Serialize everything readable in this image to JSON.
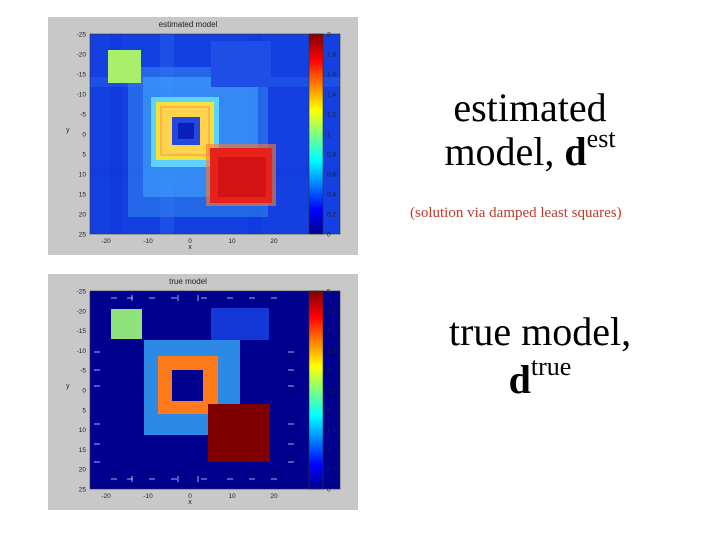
{
  "estimated_panel": {
    "plot_title": "estimated model",
    "y_ticks": [
      "-25",
      "-20",
      "-15",
      "-10",
      "-5",
      "0",
      "5",
      "10",
      "15",
      "20",
      "25"
    ],
    "x_ticks": [
      "-20",
      "-10",
      "0",
      "10",
      "20"
    ],
    "x_axis_label": "x",
    "y_axis_label": "y",
    "colorbar_ticks": [
      "2",
      "1.8",
      "1.6",
      "1.4",
      "1.2",
      "1",
      "0.8",
      "0.6",
      "0.4",
      "0.2",
      "0"
    ]
  },
  "true_panel": {
    "plot_title": "true model",
    "y_ticks": [
      "-25",
      "-20",
      "-15",
      "-10",
      "-5",
      "0",
      "5",
      "10",
      "15",
      "20",
      "25"
    ],
    "x_ticks": [
      "-20",
      "-10",
      "0",
      "10",
      "20"
    ],
    "x_axis_label": "x",
    "y_axis_label": "y",
    "colorbar_ticks": [
      "5",
      "4.5",
      "4",
      "3.5",
      "3",
      "2.5",
      "2",
      "1.5",
      "1",
      "0.5",
      "0"
    ]
  },
  "estimated_caption": {
    "line1": "estimated",
    "line2_text": "model, ",
    "symbol": "d",
    "superscript": "est"
  },
  "method_note": "(solution via damped least squares)",
  "true_caption": {
    "line1": "true model,",
    "symbol": "d",
    "superscript": "true"
  },
  "colors": {
    "note_red": "#c0392b",
    "figure_gray": "#c8c8c8"
  }
}
